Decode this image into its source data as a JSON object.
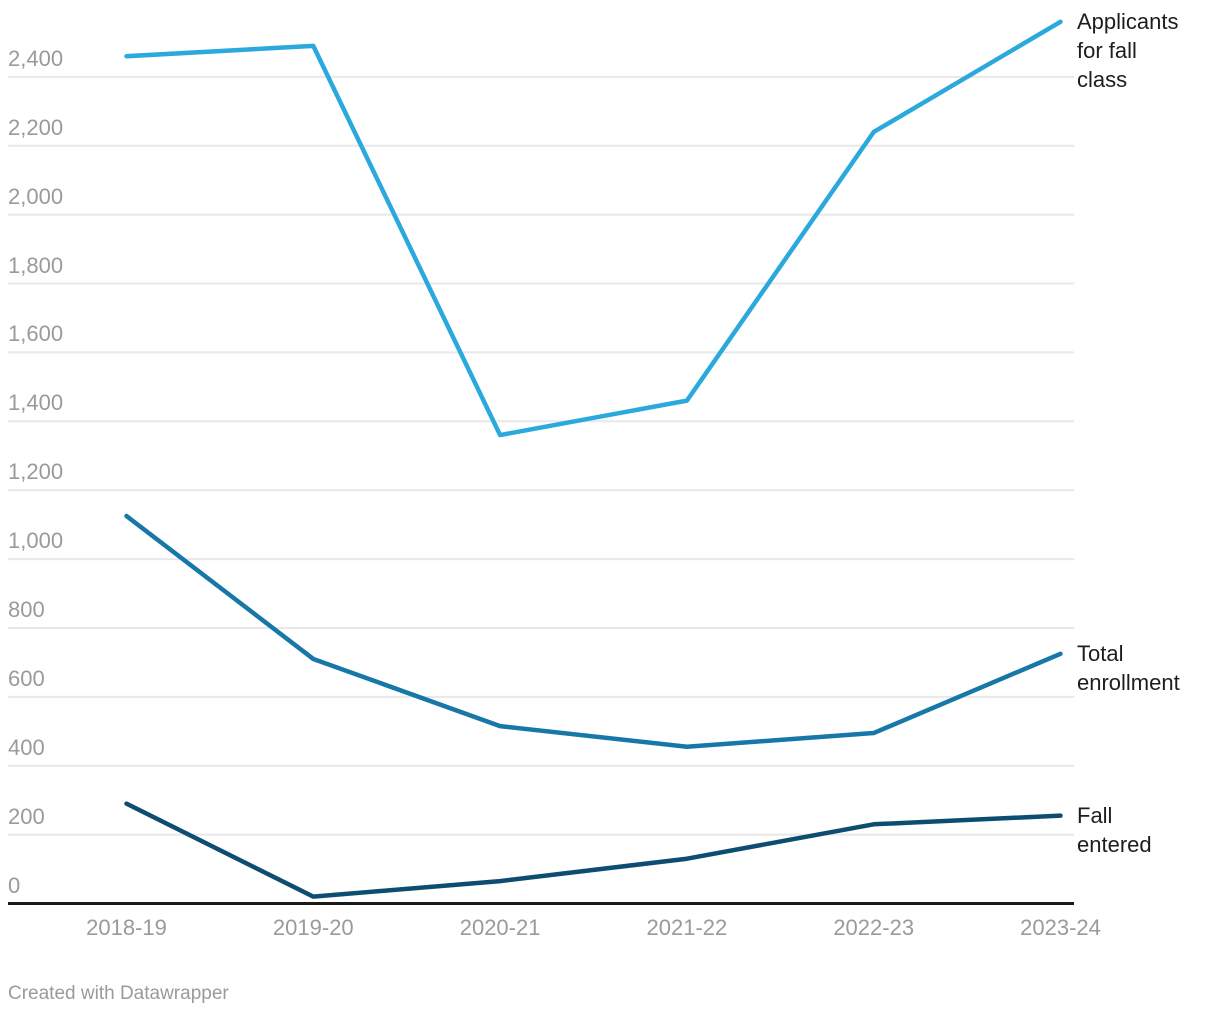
{
  "chart_data": {
    "type": "line",
    "x": [
      "2018-19",
      "2019-20",
      "2020-21",
      "2021-22",
      "2022-23",
      "2023-24"
    ],
    "series": [
      {
        "name": "Applicants for fall class",
        "label_lines": [
          "Applicants",
          "for fall",
          "class"
        ],
        "color": "#2ca9dc",
        "values": [
          2460,
          2490,
          1360,
          1460,
          2240,
          2560
        ]
      },
      {
        "name": "Total enrollment",
        "label_lines": [
          "Total",
          "enrollment"
        ],
        "color": "#1778a8",
        "values": [
          1125,
          710,
          515,
          455,
          495,
          725
        ]
      },
      {
        "name": "Fall entered",
        "label_lines": [
          "Fall",
          "entered"
        ],
        "color": "#0e4d72",
        "values": [
          290,
          20,
          65,
          130,
          230,
          255
        ]
      }
    ],
    "y_ticks": [
      {
        "value": 0,
        "label": "0"
      },
      {
        "value": 200,
        "label": "200"
      },
      {
        "value": 400,
        "label": "400"
      },
      {
        "value": 600,
        "label": "600"
      },
      {
        "value": 800,
        "label": "800"
      },
      {
        "value": 1000,
        "label": "1,000"
      },
      {
        "value": 1200,
        "label": "1,200"
      },
      {
        "value": 1400,
        "label": "1,400"
      },
      {
        "value": 1600,
        "label": "1,600"
      },
      {
        "value": 1800,
        "label": "1,800"
      },
      {
        "value": 2000,
        "label": "2,000"
      },
      {
        "value": 2200,
        "label": "2,200"
      },
      {
        "value": 2400,
        "label": "2,400"
      }
    ],
    "ylim": [
      0,
      2560
    ],
    "grid": true,
    "legend_position": "right-of-line-end",
    "grid_color": "#e8e8e8",
    "axis_color": "#1a1a1a",
    "tick_label_color": "#9a9a9a",
    "series_label_color": "#1d1d1d"
  },
  "footer": {
    "credit": "Created with Datawrapper"
  }
}
